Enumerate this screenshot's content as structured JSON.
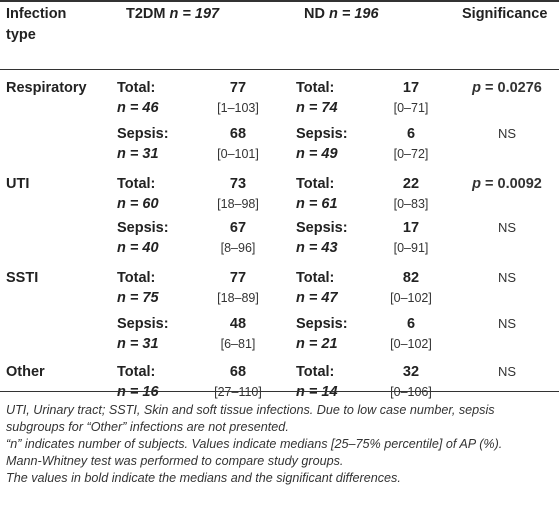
{
  "header": {
    "col_type": [
      "Infection",
      "type"
    ],
    "col_t2dm": "T2DM",
    "col_t2dm_n": "n = 197",
    "col_nd": "ND",
    "col_nd_n": "n = 196",
    "col_sig": "Significance"
  },
  "rows": [
    {
      "type": "Respiratory",
      "t_label": "Total:",
      "t_n": "n = 46",
      "t_med": "77",
      "t_iqr": "[1–103]",
      "n_label": "Total:",
      "n_n": "n = 74",
      "n_med": "17",
      "n_iqr": "[0–71]",
      "sig": "p = 0.0276",
      "sig_bold": true
    },
    {
      "type": "",
      "t_label": "Sepsis:",
      "t_n": "n = 31",
      "t_med": "68",
      "t_iqr": "[0–101]",
      "n_label": "Sepsis:",
      "n_n": "n = 49",
      "n_med": "6",
      "n_iqr": "[0–72]",
      "sig": "NS",
      "sig_bold": false
    },
    {
      "type": "UTI",
      "t_label": "Total:",
      "t_n": "n = 60",
      "t_med": "73",
      "t_iqr": "[18–98]",
      "n_label": "Total:",
      "n_n": "n = 61",
      "n_med": "22",
      "n_iqr": "[0–83]",
      "sig": "p = 0.0092",
      "sig_bold": true
    },
    {
      "type": "",
      "t_label": "Sepsis:",
      "t_n": "n = 40",
      "t_med": "67",
      "t_iqr": "[8–96]",
      "n_label": "Sepsis:",
      "n_n": "n = 43",
      "n_med": "17",
      "n_iqr": "[0–91]",
      "sig": "NS",
      "sig_bold": false
    },
    {
      "type": "SSTI",
      "t_label": "Total:",
      "t_n": "n = 75",
      "t_med": "77",
      "t_iqr": "[18–89]",
      "n_label": "Total:",
      "n_n": "n = 47",
      "n_med": "82",
      "n_iqr": "[0–102]",
      "sig": "NS",
      "sig_bold": false
    },
    {
      "type": "",
      "t_label": "Sepsis:",
      "t_n": "n = 31",
      "t_med": "48",
      "t_iqr": "[6–81]",
      "n_label": "Sepsis:",
      "n_n": "n = 21",
      "n_med": "6",
      "n_iqr": "[0–102]",
      "sig": "NS",
      "sig_bold": false
    },
    {
      "type": "Other",
      "t_label": "Total:",
      "t_n": "n = 16",
      "t_med": "68",
      "t_iqr": "[27–110]",
      "n_label": "Total:",
      "n_n": "n = 14",
      "n_med": "32",
      "n_iqr": "[0–106]",
      "sig": "NS",
      "sig_bold": false
    }
  ],
  "footnotes": [
    "UTI, Urinary tract; SSTI, Skin and soft tissue infections. Due to low case number, sepsis",
    "subgroups for “Other” infections are not presented.",
    "“n” indicates number of subjects. Values indicate medians [25–75% percentile] of AP (%).",
    "Mann-Whitney test was performed to compare study groups.",
    "The values in bold indicate the medians and the significant differences."
  ]
}
